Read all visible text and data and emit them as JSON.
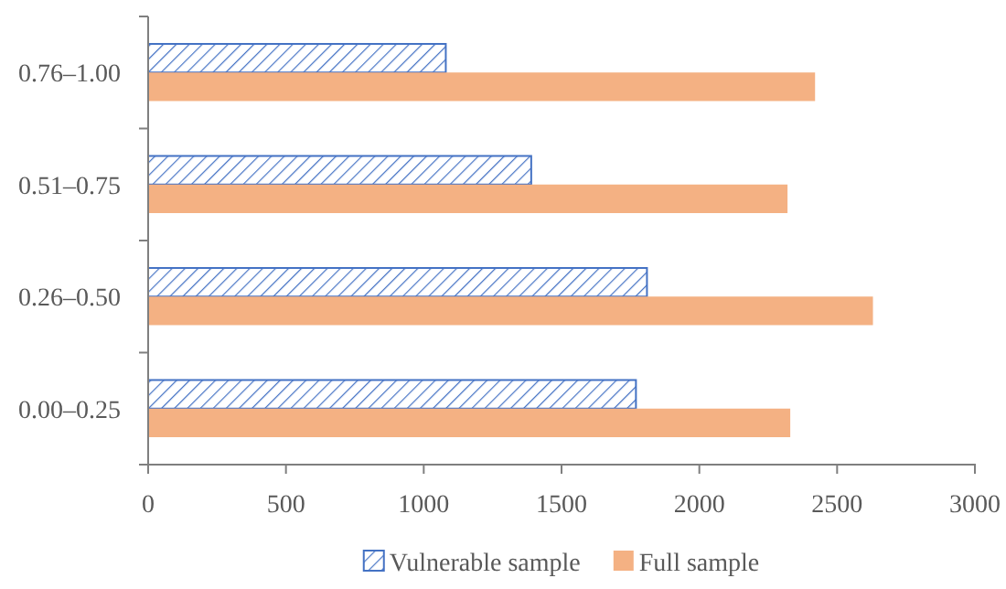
{
  "chart_data": {
    "type": "bar",
    "orientation": "horizontal",
    "categories": [
      "0.76–1.00",
      "0.51–0.75",
      "0.26–0.50",
      "0.00–0.25"
    ],
    "series": [
      {
        "name": "Vulnerable sample",
        "color": "#4472c4",
        "values": [
          1080,
          1390,
          1810,
          1770
        ]
      },
      {
        "name": "Full sample",
        "color": "#f4b183",
        "values": [
          2420,
          2320,
          2630,
          2330
        ]
      }
    ],
    "xlim": [
      0,
      3000
    ],
    "xticks": [
      0,
      500,
      1000,
      1500,
      2000,
      2500,
      3000
    ],
    "grid": false,
    "legend": "bottom"
  }
}
